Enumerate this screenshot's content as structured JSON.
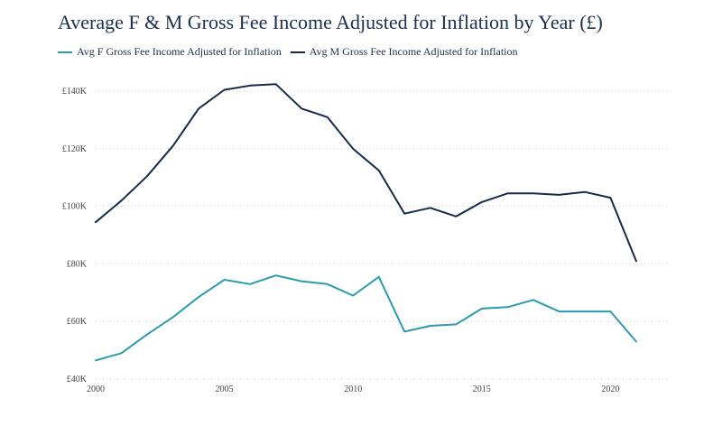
{
  "chart_data": {
    "type": "line",
    "title": "Average F & M Gross Fee Income Adjusted for Inflation by Year (£)",
    "xlabel": "",
    "ylabel": "",
    "x": [
      2000,
      2001,
      2002,
      2003,
      2004,
      2005,
      2006,
      2007,
      2008,
      2009,
      2010,
      2011,
      2012,
      2013,
      2014,
      2015,
      2016,
      2017,
      2018,
      2019,
      2020,
      2021
    ],
    "series": [
      {
        "name": "Avg F Gross Fee Income Adjusted for Inflation",
        "color": "#2a9bb0",
        "values": [
          46500,
          49000,
          55500,
          61500,
          68500,
          74500,
          73000,
          76000,
          74000,
          73000,
          69000,
          75500,
          56500,
          58500,
          59000,
          64500,
          65000,
          67500,
          63500,
          63500,
          63500,
          53000
        ]
      },
      {
        "name": "Avg M Gross Fee Income Adjusted for Inflation",
        "color": "#152a4e",
        "values": [
          94500,
          102000,
          110500,
          121000,
          134000,
          140500,
          142000,
          142500,
          134000,
          131000,
          120000,
          112500,
          97500,
          99500,
          96500,
          101500,
          104500,
          104500,
          104000,
          105000,
          103000,
          81000
        ]
      }
    ],
    "xticks": [
      "2000",
      "2005",
      "2010",
      "2015",
      "2020"
    ],
    "yticks": [
      "£40K",
      "£60K",
      "£80K",
      "£100K",
      "£120K",
      "£140K"
    ],
    "ylim": [
      40000,
      146000
    ],
    "xlim": [
      2000,
      2022.3
    ],
    "grid": "horizontal dotted",
    "legend_position": "top-left"
  }
}
